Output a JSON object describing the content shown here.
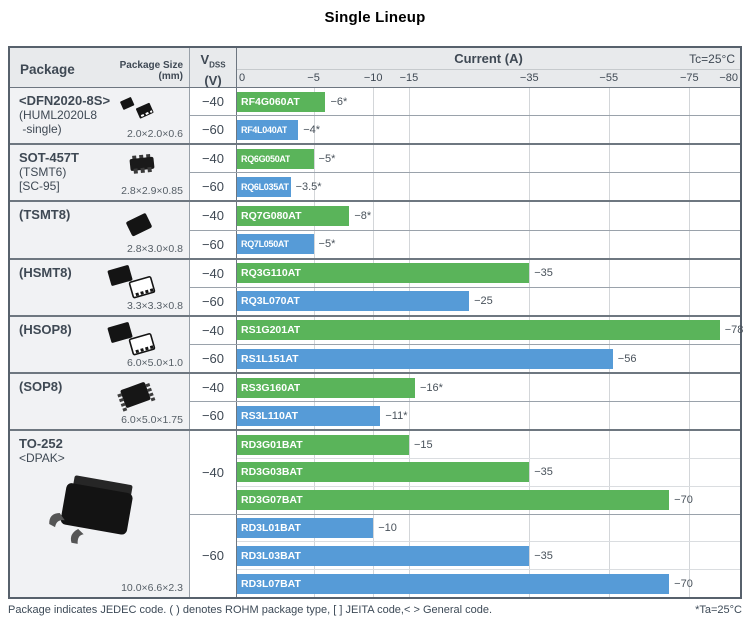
{
  "title": "Single Lineup",
  "header": {
    "package": "Package",
    "package_size_line1": "Package Size",
    "package_size_line2": "(mm)",
    "vdss_symbol": "V",
    "vdss_sub": "DSS",
    "vdss_unit": "(V)",
    "current": "Current (A)",
    "tc": "Tc=25°C"
  },
  "footer": {
    "note": "Package indicates JEDEC code. ( ) denotes ROHM package type, [ ] JEITA code,< > General code.",
    "ta": "*Ta=25°C"
  },
  "chart_data": {
    "type": "bar",
    "orientation": "horizontal",
    "title": "Single Lineup",
    "xlabel": "Current (A)",
    "condition": "Tc=25°C",
    "asterisk_condition": "*Ta=25°C",
    "axis": {
      "ticks": [
        {
          "label": "0",
          "value": 0
        },
        {
          "label": "−5",
          "value": -5
        },
        {
          "label": "−10",
          "value": -10
        },
        {
          "label": "−15",
          "value": -15
        },
        {
          "label": "−35",
          "value": -35
        },
        {
          "label": "−55",
          "value": -55
        },
        {
          "label": "−75",
          "value": -75
        },
        {
          "label": "−80",
          "value": -80
        }
      ],
      "nonlinear": true,
      "scale_anchors_value_to_percent": [
        [
          0,
          0
        ],
        [
          5,
          15.22
        ],
        [
          10,
          27.08
        ],
        [
          15,
          34.19
        ],
        [
          35,
          58.1
        ],
        [
          55,
          73.91
        ],
        [
          75,
          89.92
        ],
        [
          80,
          100
        ]
      ]
    },
    "colors": {
      "vdss_minus40_bar": "#5ab45a",
      "vdss_minus60_bar": "#569bd7",
      "header_bg": "#e8eaec",
      "package_cell_bg": "#f1f2f4",
      "text": "#3f4954"
    },
    "groups": [
      {
        "package": "<DFN2020-8S>",
        "package_subs": [
          "(HUML2020L8",
          " -single)"
        ],
        "size": "2.0×2.0×0.6",
        "icon": "dfn",
        "icon_style": "top",
        "vdss_groups": [
          {
            "vdss": "−40",
            "rows": [
              {
                "part": "RF4G060AT",
                "current": -6,
                "label": "−6*"
              }
            ]
          },
          {
            "vdss": "−60",
            "rows": [
              {
                "part": "RF4L040AT",
                "current": -4,
                "label": "−4*"
              }
            ]
          }
        ]
      },
      {
        "package": "SOT-457T",
        "package_subs": [
          "(TSMT6)",
          "[SC-95]"
        ],
        "size": "2.8×2.9×0.85",
        "icon": "sot",
        "icon_style": "top",
        "vdss_groups": [
          {
            "vdss": "−40",
            "rows": [
              {
                "part": "RQ6G050AT",
                "current": -5,
                "label": "−5*"
              }
            ]
          },
          {
            "vdss": "−60",
            "rows": [
              {
                "part": "RQ6L035AT",
                "current": -3.5,
                "label": "−3.5*"
              }
            ]
          }
        ]
      },
      {
        "package": "(TSMT8)",
        "package_subs": [],
        "size": "2.8×3.0×0.8",
        "icon": "tsmt8",
        "icon_style": "mid",
        "vdss_groups": [
          {
            "vdss": "−40",
            "rows": [
              {
                "part": "RQ7G080AT",
                "current": -8,
                "label": "−8*"
              }
            ]
          },
          {
            "vdss": "−60",
            "rows": [
              {
                "part": "RQ7L050AT",
                "current": -5,
                "label": "−5*"
              }
            ]
          }
        ]
      },
      {
        "package": "(HSMT8)",
        "package_subs": [],
        "size": "3.3×3.3×0.8",
        "icon": "dual",
        "icon_style": "mid",
        "vdss_groups": [
          {
            "vdss": "−40",
            "rows": [
              {
                "part": "RQ3G110AT",
                "current": -35,
                "label": "−35"
              }
            ]
          },
          {
            "vdss": "−60",
            "rows": [
              {
                "part": "RQ3L070AT",
                "current": -25,
                "label": "−25"
              }
            ]
          }
        ]
      },
      {
        "package": "(HSOP8)",
        "package_subs": [],
        "size": "6.0×5.0×1.0",
        "icon": "dual",
        "icon_style": "mid",
        "vdss_groups": [
          {
            "vdss": "−40",
            "rows": [
              {
                "part": "RS1G201AT",
                "current": -78,
                "label": "−78"
              }
            ]
          },
          {
            "vdss": "−60",
            "rows": [
              {
                "part": "RS1L151AT",
                "current": -56,
                "label": "−56"
              }
            ]
          }
        ]
      },
      {
        "package": "(SOP8)",
        "package_subs": [],
        "size": "6.0×5.0×1.75",
        "icon": "sop",
        "icon_style": "mid",
        "vdss_groups": [
          {
            "vdss": "−40",
            "rows": [
              {
                "part": "RS3G160AT",
                "current": -16,
                "label": "−16*"
              }
            ]
          },
          {
            "vdss": "−60",
            "rows": [
              {
                "part": "RS3L110AT",
                "current": -11,
                "label": "−11*"
              }
            ]
          }
        ]
      },
      {
        "package": "TO-252",
        "package_subs": [
          "<DPAK>"
        ],
        "size": "10.0×6.6×2.3",
        "icon": "dpak",
        "icon_style": "big",
        "vdss_groups": [
          {
            "vdss": "−40",
            "rows": [
              {
                "part": "RD3G01BAT",
                "current": -15,
                "label": "−15"
              },
              {
                "part": "RD3G03BAT",
                "current": -35,
                "label": "−35"
              },
              {
                "part": "RD3G07BAT",
                "current": -70,
                "label": "−70"
              }
            ]
          },
          {
            "vdss": "−60",
            "rows": [
              {
                "part": "RD3L01BAT",
                "current": -10,
                "label": "−10"
              },
              {
                "part": "RD3L03BAT",
                "current": -35,
                "label": "−35"
              },
              {
                "part": "RD3L07BAT",
                "current": -70,
                "label": "−70"
              }
            ]
          }
        ]
      }
    ]
  }
}
